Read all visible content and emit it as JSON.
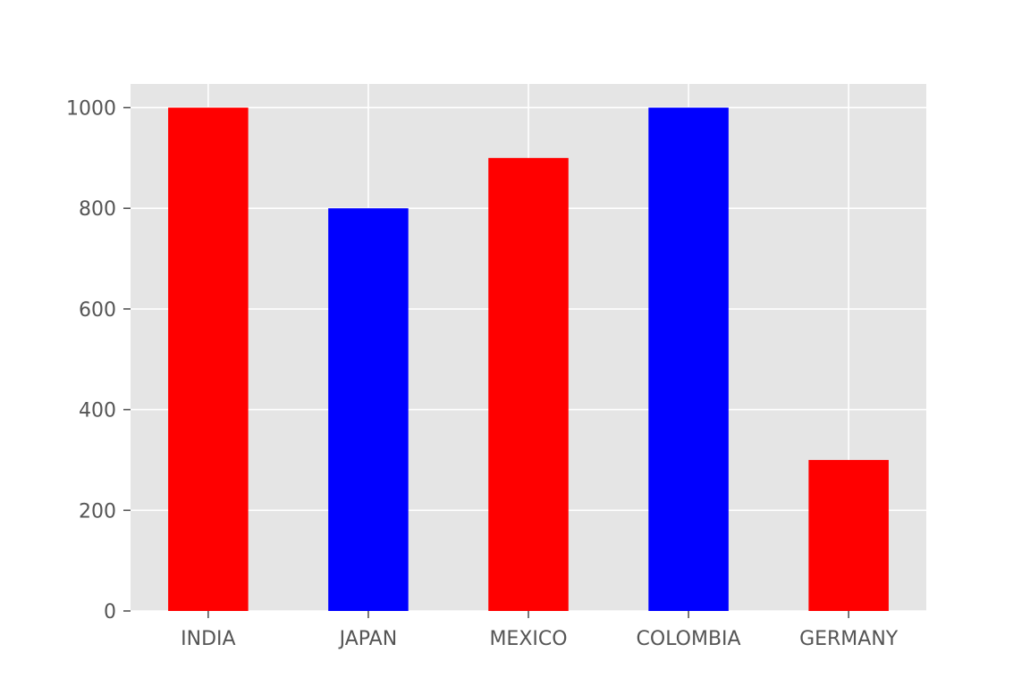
{
  "chart_data": {
    "type": "bar",
    "categories": [
      "INDIA",
      "JAPAN",
      "MEXICO",
      "COLOMBIA",
      "GERMANY"
    ],
    "values": [
      1000,
      800,
      900,
      1000,
      300
    ],
    "bar_colors": [
      "#ff0000",
      "#0000ff",
      "#ff0000",
      "#0000ff",
      "#ff0000"
    ],
    "yticks": [
      0,
      200,
      400,
      600,
      800,
      1000
    ],
    "ylim": [
      0,
      1047
    ],
    "title": "",
    "xlabel": "",
    "ylabel": "",
    "grid": true,
    "plot_background": "#e5e5e5",
    "grid_color": "#ffffff"
  }
}
